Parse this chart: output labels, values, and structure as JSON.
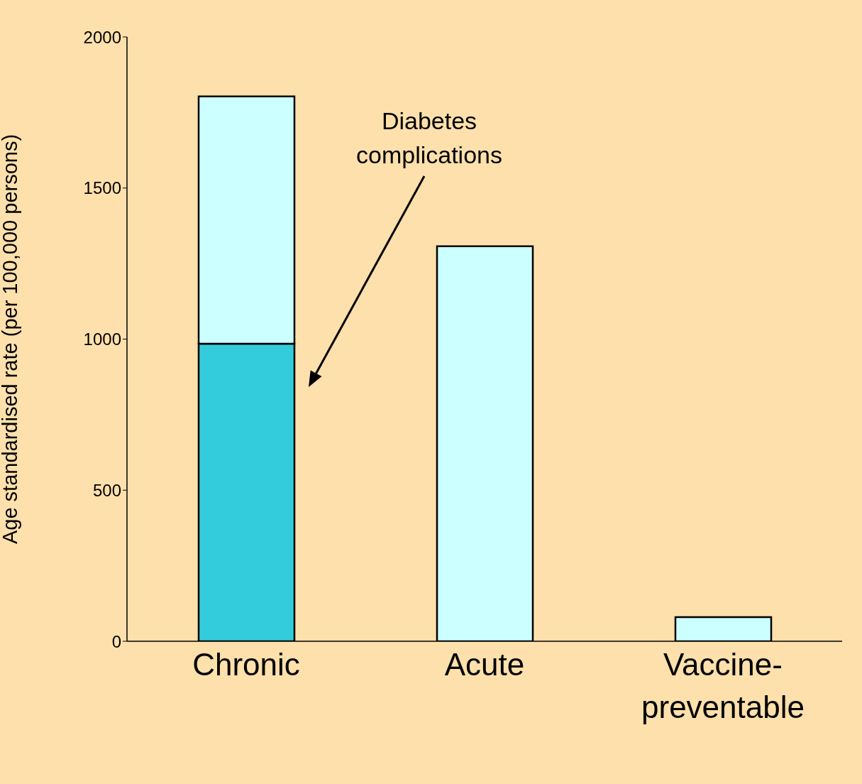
{
  "chart_data": {
    "type": "bar",
    "stacked": true,
    "ylabel": "Age standardised rate (per 100,000 persons)",
    "categories": [
      "Chronic",
      "Acute",
      "Vaccine-preventable"
    ],
    "series": [
      {
        "color": "#33ccdd",
        "values": [
          985,
          null,
          null
        ]
      },
      {
        "color": "#ccffff",
        "values": [
          818,
          1307,
          80
        ]
      }
    ],
    "ylim": [
      0,
      2000
    ],
    "yticks": [
      0,
      500,
      1000,
      1500,
      2000
    ],
    "grid": false,
    "legend": false,
    "annotations": [
      "Diabetes complications"
    ]
  }
}
